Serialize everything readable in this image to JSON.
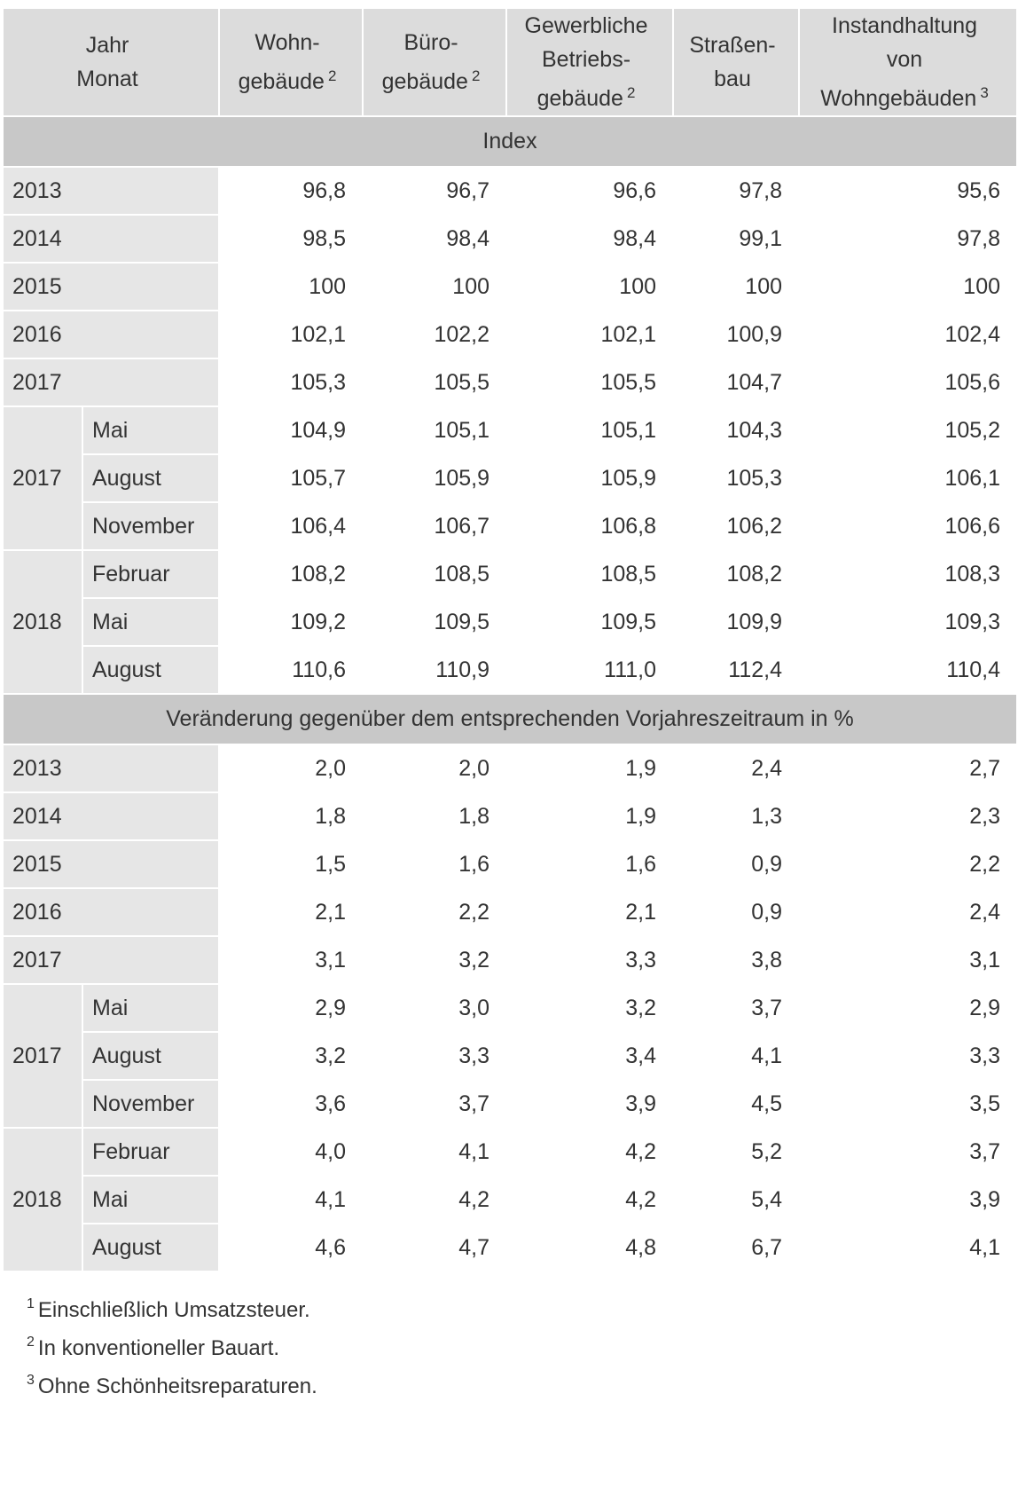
{
  "header": {
    "jahr": "Jahr",
    "monat": "Monat",
    "cols": [
      {
        "line1": "Wohn-",
        "line2": "gebäude",
        "line3": "",
        "sup": "2"
      },
      {
        "line1": "Büro-",
        "line2": "gebäude",
        "line3": "",
        "sup": "2"
      },
      {
        "line1": "Gewerbliche",
        "line2": "Betriebs-",
        "line3": "gebäude",
        "sup": "2"
      },
      {
        "line1": "Straßen-",
        "line2": "bau",
        "line3": "",
        "sup": ""
      },
      {
        "line1": "Instandhaltung",
        "line2": "von",
        "line3": "Wohngebäuden",
        "sup": "3"
      }
    ]
  },
  "sections": [
    {
      "title": "Index",
      "years": [
        {
          "year": "2013",
          "values": [
            "96,8",
            "96,7",
            "96,6",
            "97,8",
            "95,6"
          ]
        },
        {
          "year": "2014",
          "values": [
            "98,5",
            "98,4",
            "98,4",
            "99,1",
            "97,8"
          ]
        },
        {
          "year": "2015",
          "values": [
            "100",
            "100",
            "100",
            "100",
            "100"
          ]
        },
        {
          "year": "2016",
          "values": [
            "102,1",
            "102,2",
            "102,1",
            "100,9",
            "102,4"
          ]
        },
        {
          "year": "2017",
          "values": [
            "105,3",
            "105,5",
            "105,5",
            "104,7",
            "105,6"
          ]
        }
      ],
      "groups": [
        {
          "year": "2017",
          "months": [
            {
              "month": "Mai",
              "values": [
                "104,9",
                "105,1",
                "105,1",
                "104,3",
                "105,2"
              ]
            },
            {
              "month": "August",
              "values": [
                "105,7",
                "105,9",
                "105,9",
                "105,3",
                "106,1"
              ]
            },
            {
              "month": "November",
              "values": [
                "106,4",
                "106,7",
                "106,8",
                "106,2",
                "106,6"
              ]
            }
          ]
        },
        {
          "year": "2018",
          "months": [
            {
              "month": "Februar",
              "values": [
                "108,2",
                "108,5",
                "108,5",
                "108,2",
                "108,3"
              ]
            },
            {
              "month": "Mai",
              "values": [
                "109,2",
                "109,5",
                "109,5",
                "109,9",
                "109,3"
              ]
            },
            {
              "month": "August",
              "values": [
                "110,6",
                "110,9",
                "111,0",
                "112,4",
                "110,4"
              ]
            }
          ]
        }
      ]
    },
    {
      "title": "Veränderung gegenüber dem entsprechenden Vorjahreszeitraum in %",
      "years": [
        {
          "year": "2013",
          "values": [
            "2,0",
            "2,0",
            "1,9",
            "2,4",
            "2,7"
          ]
        },
        {
          "year": "2014",
          "values": [
            "1,8",
            "1,8",
            "1,9",
            "1,3",
            "2,3"
          ]
        },
        {
          "year": "2015",
          "values": [
            "1,5",
            "1,6",
            "1,6",
            "0,9",
            "2,2"
          ]
        },
        {
          "year": "2016",
          "values": [
            "2,1",
            "2,2",
            "2,1",
            "0,9",
            "2,4"
          ]
        },
        {
          "year": "2017",
          "values": [
            "3,1",
            "3,2",
            "3,3",
            "3,8",
            "3,1"
          ]
        }
      ],
      "groups": [
        {
          "year": "2017",
          "months": [
            {
              "month": "Mai",
              "values": [
                "2,9",
                "3,0",
                "3,2",
                "3,7",
                "2,9"
              ]
            },
            {
              "month": "August",
              "values": [
                "3,2",
                "3,3",
                "3,4",
                "4,1",
                "3,3"
              ]
            },
            {
              "month": "November",
              "values": [
                "3,6",
                "3,7",
                "3,9",
                "4,5",
                "3,5"
              ]
            }
          ]
        },
        {
          "year": "2018",
          "months": [
            {
              "month": "Februar",
              "values": [
                "4,0",
                "4,1",
                "4,2",
                "5,2",
                "3,7"
              ]
            },
            {
              "month": "Mai",
              "values": [
                "4,1",
                "4,2",
                "4,2",
                "5,4",
                "3,9"
              ]
            },
            {
              "month": "August",
              "values": [
                "4,6",
                "4,7",
                "4,8",
                "6,7",
                "4,1"
              ]
            }
          ]
        }
      ]
    }
  ],
  "footnotes": [
    {
      "mark": "1",
      "text": "Einschließlich Umsatzsteuer."
    },
    {
      "mark": "2",
      "text": "In konventioneller Bauart."
    },
    {
      "mark": "3",
      "text": "Ohne Schönheitsreparaturen."
    }
  ]
}
